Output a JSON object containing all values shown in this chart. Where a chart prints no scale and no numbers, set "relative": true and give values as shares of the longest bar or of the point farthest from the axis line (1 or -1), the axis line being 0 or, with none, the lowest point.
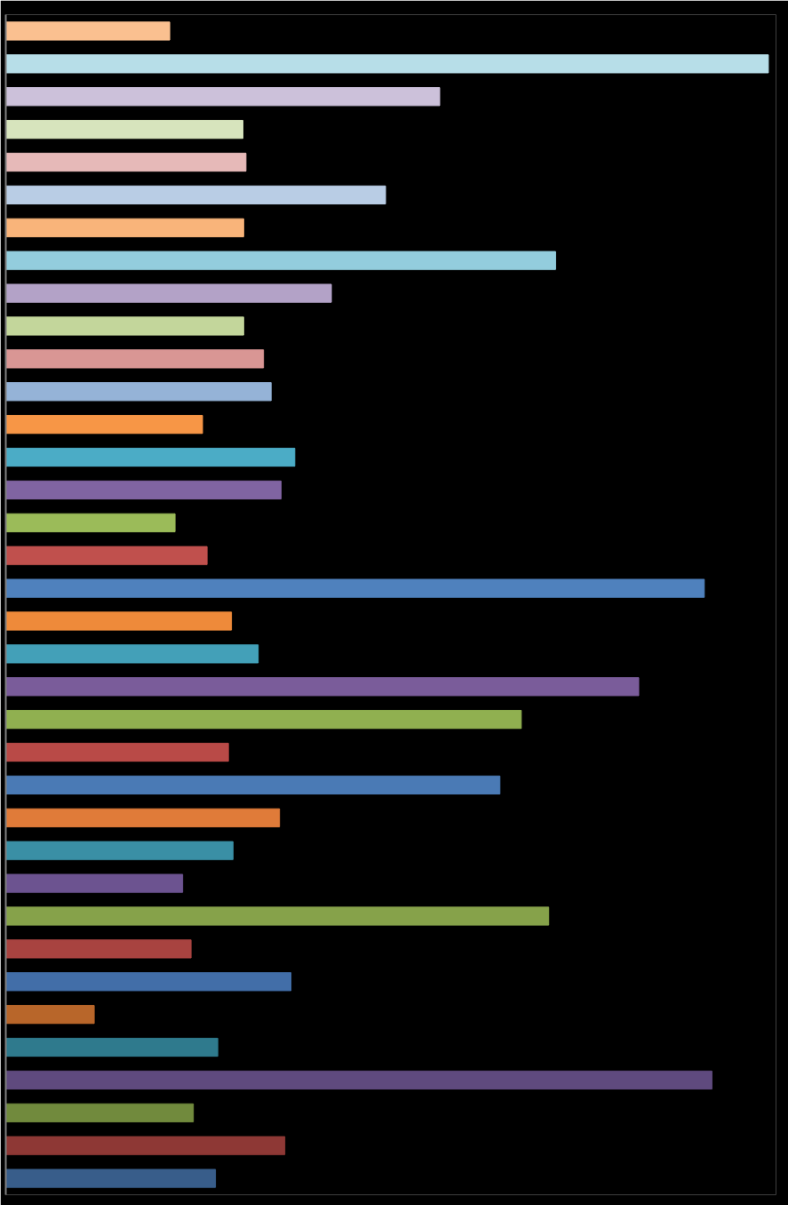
{
  "chart_data": {
    "type": "bar",
    "orientation": "horizontal",
    "relative": true,
    "grid": false,
    "categories": [
      null,
      null,
      null,
      null,
      null,
      null,
      null,
      null,
      null,
      null,
      null,
      null,
      null,
      null,
      null,
      null,
      null,
      null,
      null,
      null,
      null,
      null,
      null,
      null,
      null,
      null,
      null,
      null,
      null,
      null,
      null,
      null,
      null,
      null,
      null,
      null
    ],
    "values": [
      0.215,
      1,
      0.569,
      0.311,
      0.315,
      0.498,
      0.312,
      0.721,
      0.427,
      0.312,
      0.338,
      0.348,
      0.258,
      0.379,
      0.361,
      0.222,
      0.264,
      0.916,
      0.296,
      0.331,
      0.83,
      0.676,
      0.292,
      0.648,
      0.359,
      0.298,
      0.232,
      0.712,
      0.243,
      0.374,
      0.116,
      0.278,
      0.926,
      0.246,
      0.366,
      0.275
    ],
    "colors": [
      "#fac090",
      "#b7dee8",
      "#ccc1da",
      "#d7e4bd",
      "#e6b9b8",
      "#b9cde5",
      "#f9b47a",
      "#93cddd",
      "#b3a2c7",
      "#c3d69b",
      "#d99694",
      "#95b3d7",
      "#f79646",
      "#4bacc6",
      "#8064a2",
      "#9bbb59",
      "#c0504d",
      "#4f81bd",
      "#ee8a3a",
      "#43a0b8",
      "#7a5c9a",
      "#90b050",
      "#b94a47",
      "#4a7ab5",
      "#e07b39",
      "#3a8fa5",
      "#6c5390",
      "#86a24a",
      "#a84340",
      "#426ea8",
      "#b8662a",
      "#2f7a8d",
      "#5f4a7e",
      "#718a3d",
      "#8e3835",
      "#385d8a"
    ]
  }
}
